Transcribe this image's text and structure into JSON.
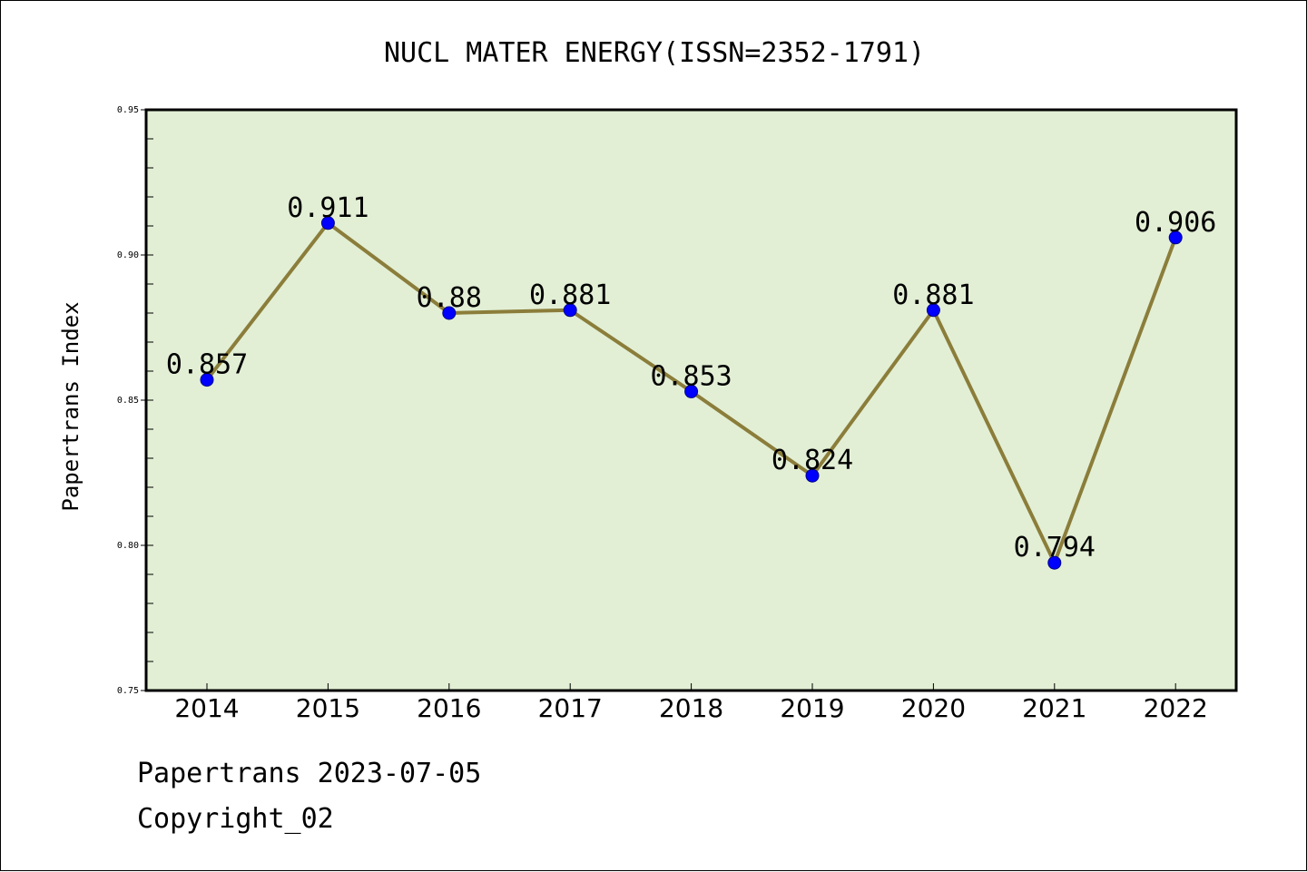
{
  "chart_data": {
    "type": "line",
    "title": "NUCL MATER ENERGY(ISSN=2352-1791)",
    "xlabel": "",
    "ylabel": "Papertrans Index",
    "categories": [
      "2014",
      "2015",
      "2016",
      "2017",
      "2018",
      "2019",
      "2020",
      "2021",
      "2022"
    ],
    "values": [
      0.857,
      0.911,
      0.88,
      0.881,
      0.853,
      0.824,
      0.881,
      0.794,
      0.906
    ],
    "data_labels": [
      "0.857",
      "0.911",
      "0.88",
      "0.881",
      "0.853",
      "0.824",
      "0.881",
      "0.794",
      "0.906"
    ],
    "ylim": [
      0.75,
      0.95
    ],
    "yticks": [
      "0.75",
      "0.80",
      "0.85",
      "0.90",
      "0.95"
    ],
    "grid": false,
    "colors": {
      "plot_background": "#e2efd5",
      "line": "#8b7d3a",
      "marker": "#0000ff"
    }
  },
  "footer": {
    "line1": "Papertrans 2023-07-05",
    "line2": "Copyright_02"
  }
}
